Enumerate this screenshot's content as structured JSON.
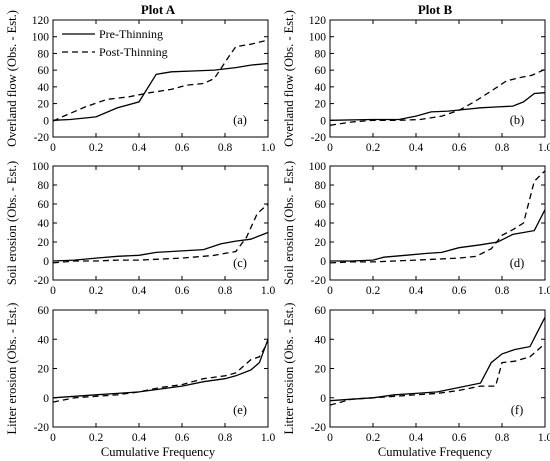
{
  "figure": {
    "column_titles": [
      "Plot A",
      "Plot B"
    ],
    "x_axis_label": "Cumulative Frequency",
    "legend": {
      "pre_label": "Pre-Thinning",
      "post_label": "Post-Thinning",
      "placement": "top-left of panel (a)"
    }
  },
  "chart_data": [
    {
      "type": "line",
      "panel": "(a)",
      "plot": "Plot A",
      "ylabel": "Overland flow (Obs. - Est.)",
      "xlim": [
        0,
        1
      ],
      "ylim": [
        -20,
        120
      ],
      "xticks": [
        "0",
        "0.2",
        "0.4",
        "0.6",
        "0.8",
        "1.0"
      ],
      "yticks": [
        "-20",
        "0",
        "20",
        "40",
        "60",
        "80",
        "100",
        "120"
      ],
      "series": [
        {
          "name": "Pre-Thinning",
          "style": "solid",
          "x": [
            0,
            0.08,
            0.2,
            0.3,
            0.4,
            0.48,
            0.55,
            0.65,
            0.75,
            0.85,
            0.92,
            1.0
          ],
          "y": [
            0,
            1,
            4,
            15,
            22,
            55,
            58,
            59,
            60,
            63,
            66,
            68
          ]
        },
        {
          "name": "Post-Thinning",
          "style": "dashed",
          "x": [
            0,
            0.05,
            0.15,
            0.25,
            0.35,
            0.45,
            0.55,
            0.62,
            0.7,
            0.75,
            0.82,
            0.85,
            0.92,
            1.0
          ],
          "y": [
            -1,
            5,
            16,
            25,
            28,
            33,
            37,
            42,
            44,
            50,
            77,
            88,
            91,
            96
          ]
        }
      ]
    },
    {
      "type": "line",
      "panel": "(b)",
      "plot": "Plot B",
      "ylabel": "Overland flow (Obs. - Est.)",
      "xlim": [
        0,
        1
      ],
      "ylim": [
        -20,
        120
      ],
      "xticks": [
        "0",
        "0.2",
        "0.4",
        "0.6",
        "0.8",
        "1.0"
      ],
      "yticks": [
        "-20",
        "0",
        "20",
        "40",
        "60",
        "80",
        "100",
        "120"
      ],
      "series": [
        {
          "name": "Pre-Thinning",
          "style": "solid",
          "x": [
            0,
            0.2,
            0.32,
            0.4,
            0.47,
            0.55,
            0.63,
            0.7,
            0.78,
            0.85,
            0.9,
            0.95,
            1.0
          ],
          "y": [
            0,
            1,
            1,
            5,
            10,
            11,
            13,
            15,
            16,
            17,
            22,
            32,
            33
          ]
        },
        {
          "name": "Post-Thinning",
          "style": "dashed",
          "x": [
            0,
            0.1,
            0.2,
            0.32,
            0.42,
            0.52,
            0.6,
            0.67,
            0.75,
            0.82,
            0.88,
            0.94,
            1.0
          ],
          "y": [
            -6,
            -2,
            0,
            0,
            1,
            5,
            12,
            22,
            35,
            47,
            51,
            54,
            61
          ]
        }
      ]
    },
    {
      "type": "line",
      "panel": "(c)",
      "plot": "Plot A",
      "ylabel": "Soil erosion (Obs. - Est.)",
      "xlim": [
        0,
        1
      ],
      "ylim": [
        -20,
        100
      ],
      "xticks": [
        "0",
        "0.2",
        "0.4",
        "0.6",
        "0.8",
        "1.0"
      ],
      "yticks": [
        "-20",
        "0",
        "20",
        "40",
        "60",
        "80",
        "100"
      ],
      "series": [
        {
          "name": "Pre-Thinning",
          "style": "solid",
          "x": [
            0,
            0.1,
            0.2,
            0.3,
            0.4,
            0.48,
            0.55,
            0.62,
            0.7,
            0.78,
            0.85,
            0.92,
            1.0
          ],
          "y": [
            0,
            1,
            3,
            5,
            6,
            9,
            10,
            11,
            12,
            18,
            21,
            23,
            30
          ]
        },
        {
          "name": "Post-Thinning",
          "style": "dashed",
          "x": [
            0,
            0.1,
            0.2,
            0.3,
            0.4,
            0.5,
            0.6,
            0.7,
            0.75,
            0.8,
            0.85,
            0.9,
            0.95,
            1.0
          ],
          "y": [
            -2,
            0,
            0,
            1,
            1,
            2,
            3,
            5,
            6,
            8,
            10,
            25,
            50,
            60
          ]
        }
      ]
    },
    {
      "type": "line",
      "panel": "(d)",
      "plot": "Plot B",
      "ylabel": "Soil erosion (Obs. - Est.)",
      "xlim": [
        0,
        1
      ],
      "ylim": [
        -20,
        100
      ],
      "xticks": [
        "0",
        "0.2",
        "0.4",
        "0.6",
        "0.8",
        "1.0"
      ],
      "yticks": [
        "-20",
        "0",
        "20",
        "40",
        "60",
        "80",
        "100"
      ],
      "series": [
        {
          "name": "Pre-Thinning",
          "style": "solid",
          "x": [
            0,
            0.1,
            0.2,
            0.25,
            0.35,
            0.45,
            0.52,
            0.6,
            0.7,
            0.78,
            0.85,
            0.9,
            0.95,
            1.0
          ],
          "y": [
            0,
            0,
            1,
            4,
            6,
            8,
            9,
            14,
            17,
            20,
            28,
            30,
            32,
            54
          ]
        },
        {
          "name": "Post-Thinning",
          "style": "dashed",
          "x": [
            0,
            0.1,
            0.2,
            0.3,
            0.4,
            0.5,
            0.6,
            0.68,
            0.75,
            0.8,
            0.85,
            0.9,
            0.95,
            1.0
          ],
          "y": [
            -2,
            -1,
            -1,
            0,
            1,
            2,
            3,
            5,
            13,
            27,
            33,
            40,
            84,
            95
          ]
        }
      ]
    },
    {
      "type": "line",
      "panel": "(e)",
      "plot": "Plot A",
      "ylabel": "Litter erosion (Obs. - Est.)",
      "xlim": [
        0,
        1
      ],
      "ylim": [
        -20,
        60
      ],
      "xticks": [
        "0",
        "0.2",
        "0.4",
        "0.6",
        "0.8",
        "1.0"
      ],
      "yticks": [
        "-20",
        "0",
        "20",
        "40",
        "60"
      ],
      "series": [
        {
          "name": "Pre-Thinning",
          "style": "solid",
          "x": [
            0,
            0.1,
            0.2,
            0.3,
            0.4,
            0.5,
            0.6,
            0.7,
            0.8,
            0.85,
            0.92,
            0.96,
            1.0
          ],
          "y": [
            0,
            1,
            2,
            3,
            4,
            6,
            8,
            11,
            13,
            15,
            19,
            24,
            40
          ]
        },
        {
          "name": "Post-Thinning",
          "style": "dashed",
          "x": [
            0,
            0.1,
            0.2,
            0.3,
            0.4,
            0.5,
            0.6,
            0.7,
            0.8,
            0.85,
            0.92,
            0.96,
            1.0
          ],
          "y": [
            -3,
            0,
            1,
            2,
            4,
            7,
            9,
            13,
            15,
            17,
            26,
            28,
            38
          ]
        }
      ]
    },
    {
      "type": "line",
      "panel": "(f)",
      "plot": "Plot B",
      "ylabel": "Litter erosion (Obs. - Est.)",
      "xlim": [
        0,
        1
      ],
      "ylim": [
        -20,
        60
      ],
      "xticks": [
        "0",
        "0.2",
        "0.4",
        "0.6",
        "0.8",
        "1.0"
      ],
      "yticks": [
        "-20",
        "0",
        "20",
        "40",
        "60"
      ],
      "series": [
        {
          "name": "Pre-Thinning",
          "style": "solid",
          "x": [
            0,
            0.1,
            0.2,
            0.3,
            0.4,
            0.5,
            0.6,
            0.7,
            0.75,
            0.8,
            0.86,
            0.93,
            1.0
          ],
          "y": [
            -2,
            -1,
            0,
            2,
            3,
            4,
            7,
            10,
            24,
            30,
            33,
            35,
            55
          ]
        },
        {
          "name": "Post-Thinning",
          "style": "dashed",
          "x": [
            0,
            0.1,
            0.2,
            0.3,
            0.4,
            0.5,
            0.6,
            0.7,
            0.77,
            0.8,
            0.86,
            0.93,
            1.0
          ],
          "y": [
            -5,
            -1,
            0,
            1,
            2,
            3,
            5,
            8,
            8,
            24,
            25,
            28,
            37
          ]
        }
      ]
    }
  ]
}
